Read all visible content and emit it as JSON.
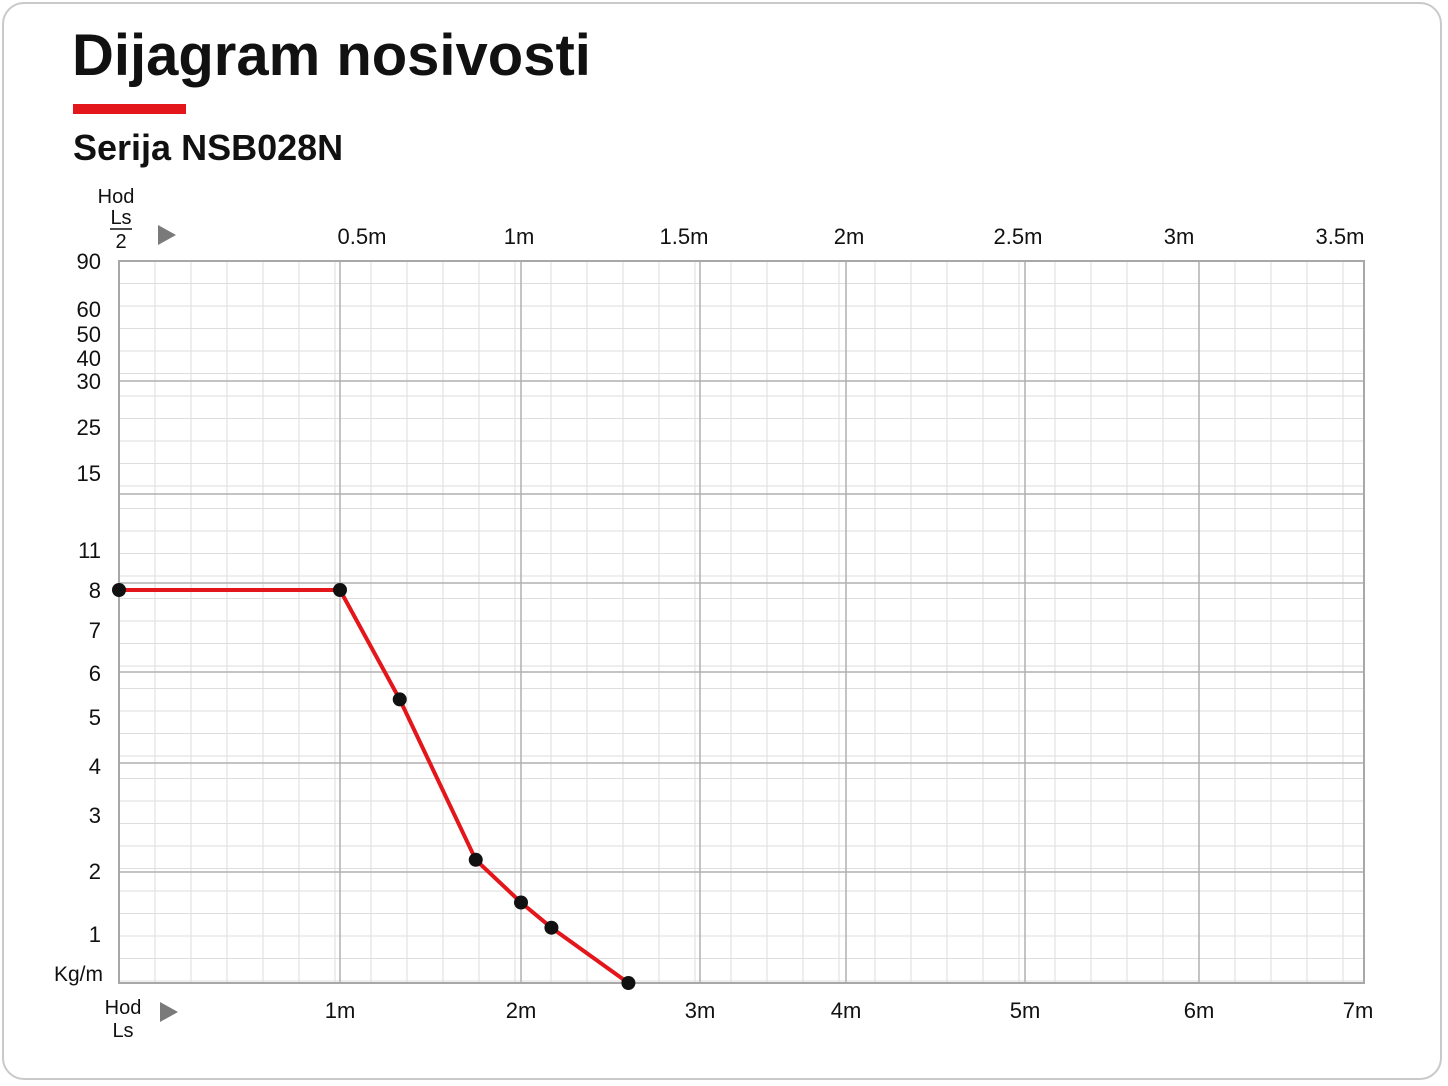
{
  "title": "Dijagram nosivosti",
  "subtitle": "Serija NSB028N",
  "colors": {
    "accent": "#e3161b",
    "line": "#e3161b",
    "points": "#111111",
    "grid_major": "#b0b0b0",
    "grid_minor": "#dedede"
  },
  "chart_data": {
    "type": "line",
    "top_axis_label": [
      "Hod",
      "Ls",
      "2"
    ],
    "bottom_axis_label": [
      "Hod",
      "Ls"
    ],
    "y_unit_label": "Kg/m",
    "top_ticks": [
      "0.5m",
      "1m",
      "1.5m",
      "2m",
      "2.5m",
      "3m",
      "3.5m"
    ],
    "bottom_ticks": [
      "1m",
      "2m",
      "3m",
      "4m",
      "5m",
      "6m",
      "7m"
    ],
    "y_ticks": [
      "90",
      "60",
      "50",
      "40",
      "30",
      "25",
      "15",
      "11",
      "8",
      "7",
      "6",
      "5",
      "4",
      "3",
      "2",
      "1"
    ],
    "grid": true,
    "series": [
      {
        "points": [
          {
            "x": 0,
            "y": 8
          },
          {
            "x": 1.0,
            "y": 8
          },
          {
            "x": 1.33,
            "y": 5.4
          },
          {
            "x": 1.75,
            "y": 2.2
          },
          {
            "x": 2.0,
            "y": 1.5
          },
          {
            "x": 2.17,
            "y": 1.1
          },
          {
            "x": 2.6,
            "y": 0
          }
        ]
      }
    ]
  }
}
